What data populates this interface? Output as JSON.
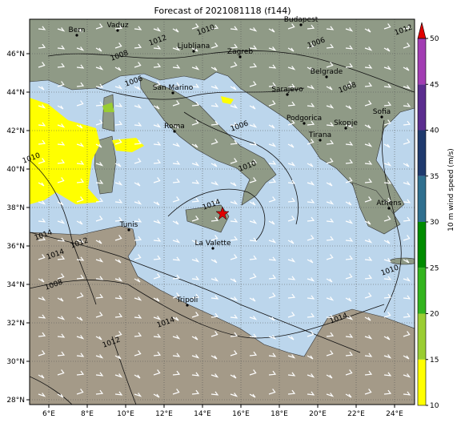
{
  "title": "Forecast of 2021081118 (f144)",
  "map": {
    "lon_ticks": [
      {
        "value": 6,
        "label": "6°E"
      },
      {
        "value": 8,
        "label": "8°E"
      },
      {
        "value": 10,
        "label": "10°E"
      },
      {
        "value": 12,
        "label": "12°E"
      },
      {
        "value": 14,
        "label": "14°E"
      },
      {
        "value": 16,
        "label": "16°E"
      },
      {
        "value": 18,
        "label": "18°E"
      },
      {
        "value": 20,
        "label": "20°E"
      },
      {
        "value": 22,
        "label": "22°E"
      },
      {
        "value": 24,
        "label": "24°E"
      }
    ],
    "lat_ticks": [
      {
        "value": 28,
        "label": "28°N"
      },
      {
        "value": 30,
        "label": "30°N"
      },
      {
        "value": 32,
        "label": "32°N"
      },
      {
        "value": 34,
        "label": "34°N"
      },
      {
        "value": 36,
        "label": "36°N"
      },
      {
        "value": 38,
        "label": "38°N"
      },
      {
        "value": 40,
        "label": "40°N"
      },
      {
        "value": 42,
        "label": "42°N"
      },
      {
        "value": 44,
        "label": "44°N"
      },
      {
        "value": 46,
        "label": "46°N"
      }
    ],
    "cities": [
      "Bern",
      "Vaduz",
      "Budapest",
      "Ljubljana",
      "Zagreb",
      "San Marino",
      "Belgrade",
      "Sarajevo",
      "Podgorica",
      "Sofia",
      "Roma",
      "Skopje",
      "Tirana",
      "Athens",
      "Tunis",
      "La Valette",
      "Tripoli"
    ],
    "isobar_labels": [
      "1014",
      "1012",
      "1006",
      "1010",
      "1008",
      "1008",
      "1006",
      "1012",
      "1014",
      "1014",
      "1008",
      "1012",
      "1014",
      "1010",
      "1006",
      "1010",
      "1010",
      "1012",
      "1014"
    ]
  },
  "colorbar": {
    "label": "10 m wind speed (m/s)",
    "lim": [
      10,
      50
    ],
    "ticks": [
      10,
      15,
      20,
      25,
      30,
      35,
      40,
      45,
      50
    ],
    "colors": [
      "#ffff00",
      "#9acd32",
      "#32b41e",
      "#008c00",
      "#2f6f8f",
      "#1f3a6e",
      "#5b2d8f",
      "#a23db3"
    ],
    "extend_color": "#e00000"
  }
}
